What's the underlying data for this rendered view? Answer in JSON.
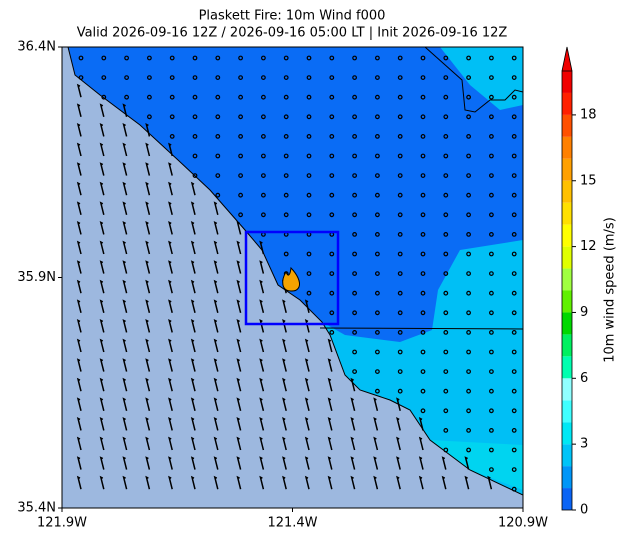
{
  "title": "Plaskett Fire: 10m Wind f000",
  "subtitle": "Valid 2026-09-16 12Z / 2026-09-16 05:00 LT | Init 2026-09-16 12Z",
  "map": {
    "xlim": [
      -121.9,
      -120.9
    ],
    "ylim": [
      35.4,
      36.4
    ],
    "xticks": [
      {
        "value": -121.9,
        "label": "121.9W"
      },
      {
        "value": -121.4,
        "label": "121.4W"
      },
      {
        "value": -120.9,
        "label": "120.9W"
      }
    ],
    "yticks": [
      {
        "value": 35.4,
        "label": "35.4N"
      },
      {
        "value": 35.9,
        "label": "35.9N"
      },
      {
        "value": 36.4,
        "label": "36.4N"
      }
    ]
  },
  "colorbar": {
    "label": "10m wind speed (m/s)",
    "lim": [
      0,
      20
    ],
    "ticks": [
      0,
      3,
      6,
      9,
      12,
      15,
      18
    ],
    "levels": [
      0,
      1,
      2,
      3,
      4,
      5,
      6,
      7,
      8,
      9,
      10,
      11,
      12,
      13,
      14,
      15,
      16,
      17,
      18,
      19,
      20
    ],
    "colors": [
      "#0a64f5",
      "#0096f8",
      "#00c4f8",
      "#00e8f5",
      "#40ffff",
      "#90ffff",
      "#00ffb0",
      "#00f060",
      "#00d800",
      "#60f000",
      "#a0ff40",
      "#e0ff00",
      "#ffff00",
      "#ffe000",
      "#ffc000",
      "#ffa000",
      "#ff8000",
      "#ff5000",
      "#ff2000",
      "#f00000"
    ]
  }
}
